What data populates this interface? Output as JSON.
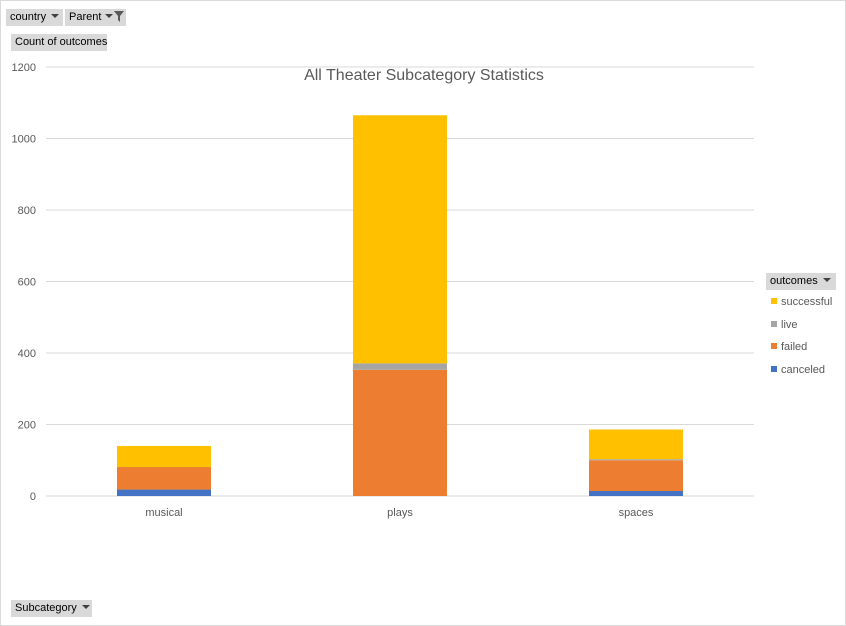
{
  "filters": {
    "country_label": "country",
    "parent_label": "Parent"
  },
  "value_field": "Count of outcomes",
  "legend_field": "outcomes",
  "axis_field": "Subcategory",
  "colors": {
    "successful": "#ffc000",
    "live": "#a5a5a5",
    "failed": "#ed7d31",
    "canceled": "#4472c4",
    "gridline": "#d9d9d9",
    "field_button": "#d9d9d9"
  },
  "chart_data": {
    "type": "bar",
    "stacked": true,
    "title": "All Theater Subcategory Statistics",
    "categories": [
      "musical",
      "plays",
      "spaces"
    ],
    "series": [
      {
        "name": "canceled",
        "values": [
          18,
          0,
          14
        ]
      },
      {
        "name": "failed",
        "values": [
          63,
          353,
          86
        ]
      },
      {
        "name": "live",
        "values": [
          0,
          18,
          3
        ]
      },
      {
        "name": "successful",
        "values": [
          59,
          694,
          83
        ]
      }
    ],
    "ylim": [
      0,
      1200
    ],
    "yticks": [
      "0",
      "200",
      "400",
      "600",
      "800",
      "1000",
      "1200"
    ],
    "grid": true,
    "legend_position": "right",
    "legend_order": [
      "successful",
      "live",
      "failed",
      "canceled"
    ]
  }
}
